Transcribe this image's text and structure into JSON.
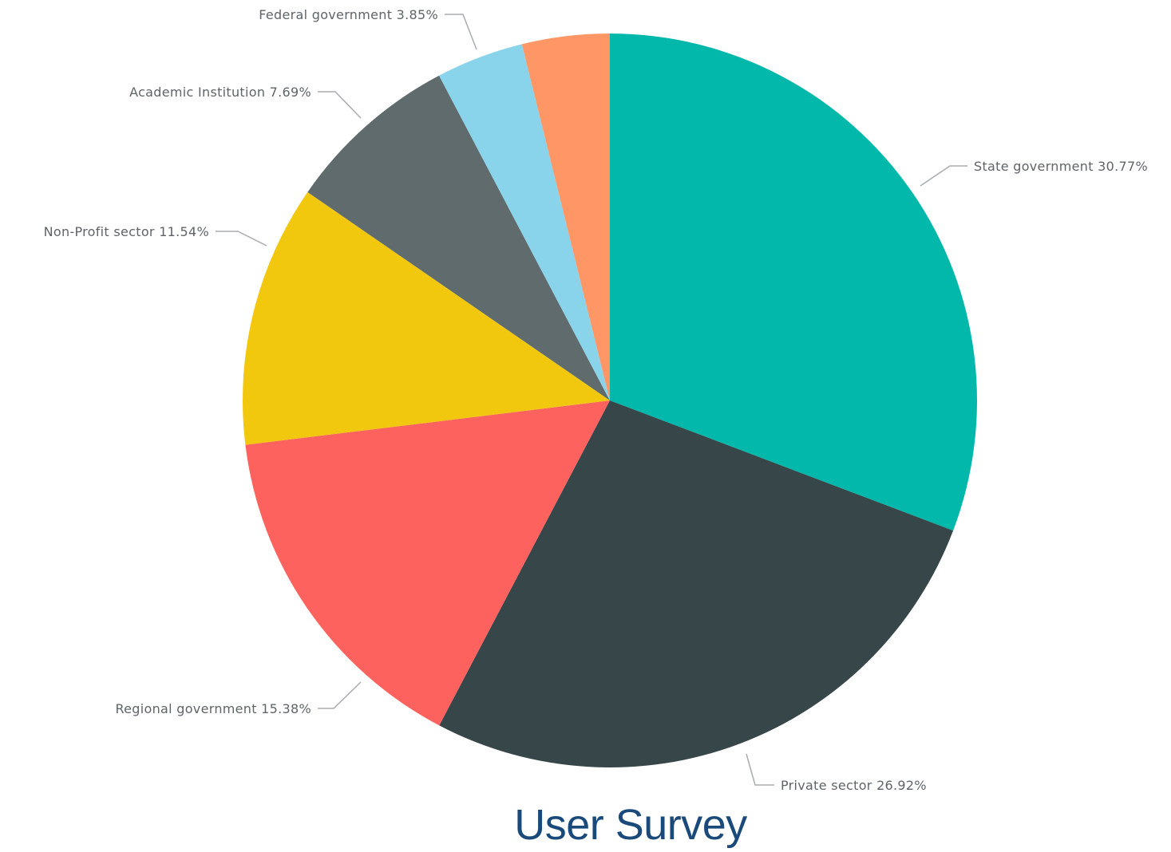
{
  "chart_data": {
    "type": "pie",
    "title": "User Survey",
    "start_angle_deg": 0,
    "direction": "clockwise",
    "slices": [
      {
        "label": "State government 30.77%",
        "category": "State government",
        "value": 30.77,
        "color": "#01b8aa"
      },
      {
        "label": "Private sector 26.92%",
        "category": "Private sector",
        "value": 26.92,
        "color": "#374649"
      },
      {
        "label": "Regional government 15.38%",
        "category": "Regional government",
        "value": 15.38,
        "color": "#fd625e"
      },
      {
        "label": "Non-Profit sector 11.54%",
        "category": "Non-Profit sector",
        "value": 11.54,
        "color": "#f2c80f"
      },
      {
        "label": "Academic Institution 7.69%",
        "category": "Academic Institution",
        "value": 7.69,
        "color": "#5f6b6d"
      },
      {
        "label": "Federal government 3.85%",
        "category": "Federal government",
        "value": 3.85,
        "color": "#8ad4eb"
      },
      {
        "label": "",
        "category": "",
        "value": 3.85,
        "color": "#fe9666"
      }
    ]
  }
}
